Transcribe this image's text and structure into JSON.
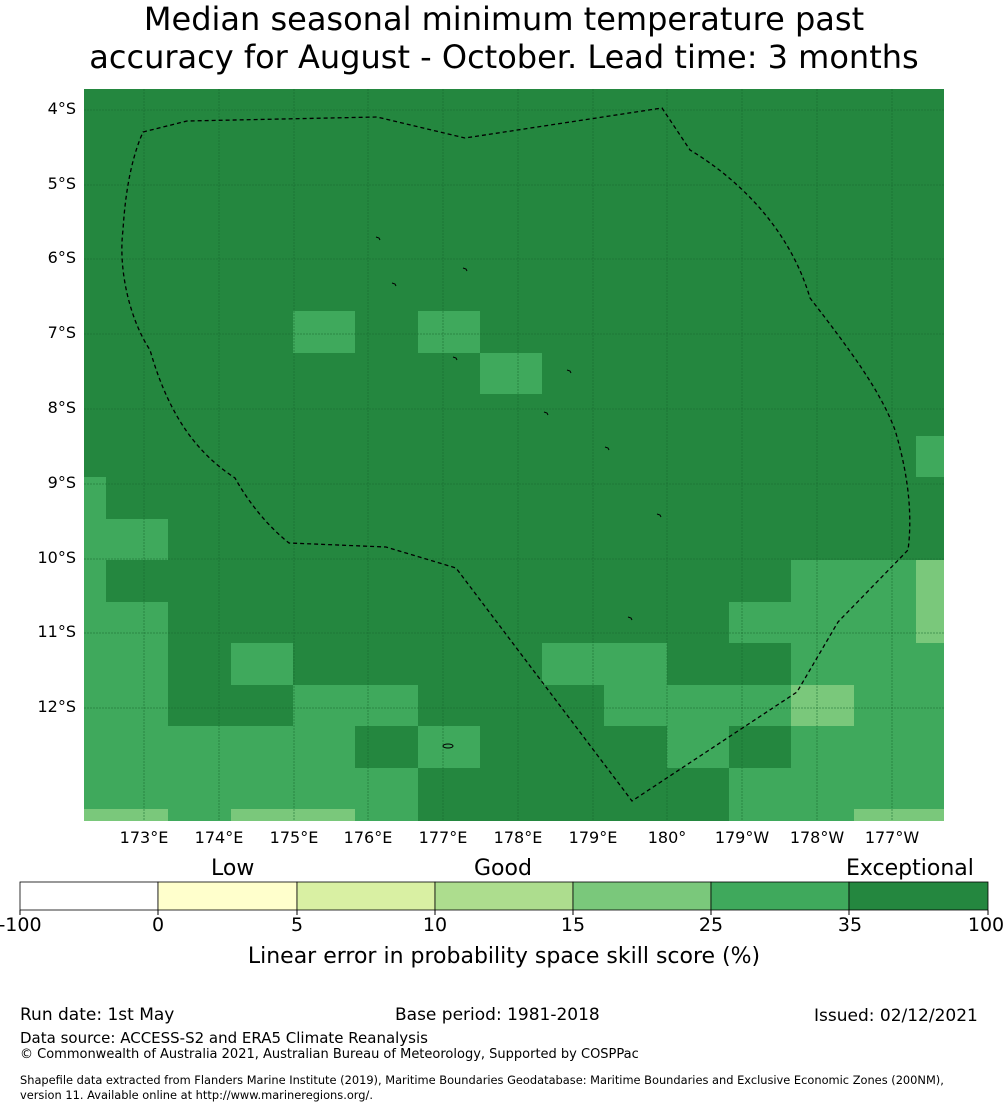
{
  "title": {
    "line1": "Median seasonal minimum temperature past",
    "line2": "accuracy for August - October. Lead time: 3 months"
  },
  "map": {
    "lat_labels": [
      "4°S",
      "5°S",
      "6°S",
      "7°S",
      "8°S",
      "9°S",
      "10°S",
      "11°S",
      "12°S"
    ],
    "lon_labels": [
      "173°E",
      "174°E",
      "175°E",
      "176°E",
      "177°E",
      "178°E",
      "179°E",
      "180°",
      "179°W",
      "178°W",
      "177°W"
    ],
    "colors": {
      "c35_100": "#24873f",
      "c25_35": "#3fa95c",
      "c15_25": "#7ac87b",
      "c10_15": "#addd8e",
      "c5_10": "#d9f0a3",
      "c0_5": "#ffffcc",
      "cneg": "#ffffff"
    },
    "boundary": "dashed exclusive economic zone outline"
  },
  "colorbar": {
    "categories": [
      "Low",
      "Good",
      "Exceptional"
    ],
    "ticks": [
      "-100",
      "0",
      "5",
      "10",
      "15",
      "25",
      "35",
      "100"
    ],
    "colors": [
      "#ffffff",
      "#ffffcc",
      "#d9f0a3",
      "#addd8e",
      "#7ac87b",
      "#3fa95c",
      "#24873f"
    ],
    "label": "Linear error in probability space skill score (%)"
  },
  "footer": {
    "run_date": "Run date: 1st May",
    "base_period": "Base period: 1981-2018",
    "issued": "Issued: 02/12/2021",
    "data_source": "Data source: ACCESS-S2 and ERA5 Climate Reanalysis",
    "copyright": "© Commonwealth of Australia 2021, Australian Bureau of Meteorology, Supported by COSPPac",
    "shapefile_line1": "Shapefile data extracted from Flanders Marine Institute (2019), Maritime Boundaries Geodatabase: Maritime Boundaries and Exclusive Economic Zones (200NM),",
    "shapefile_line2": "version 11. Available online at http://www.marineregions.org/."
  }
}
